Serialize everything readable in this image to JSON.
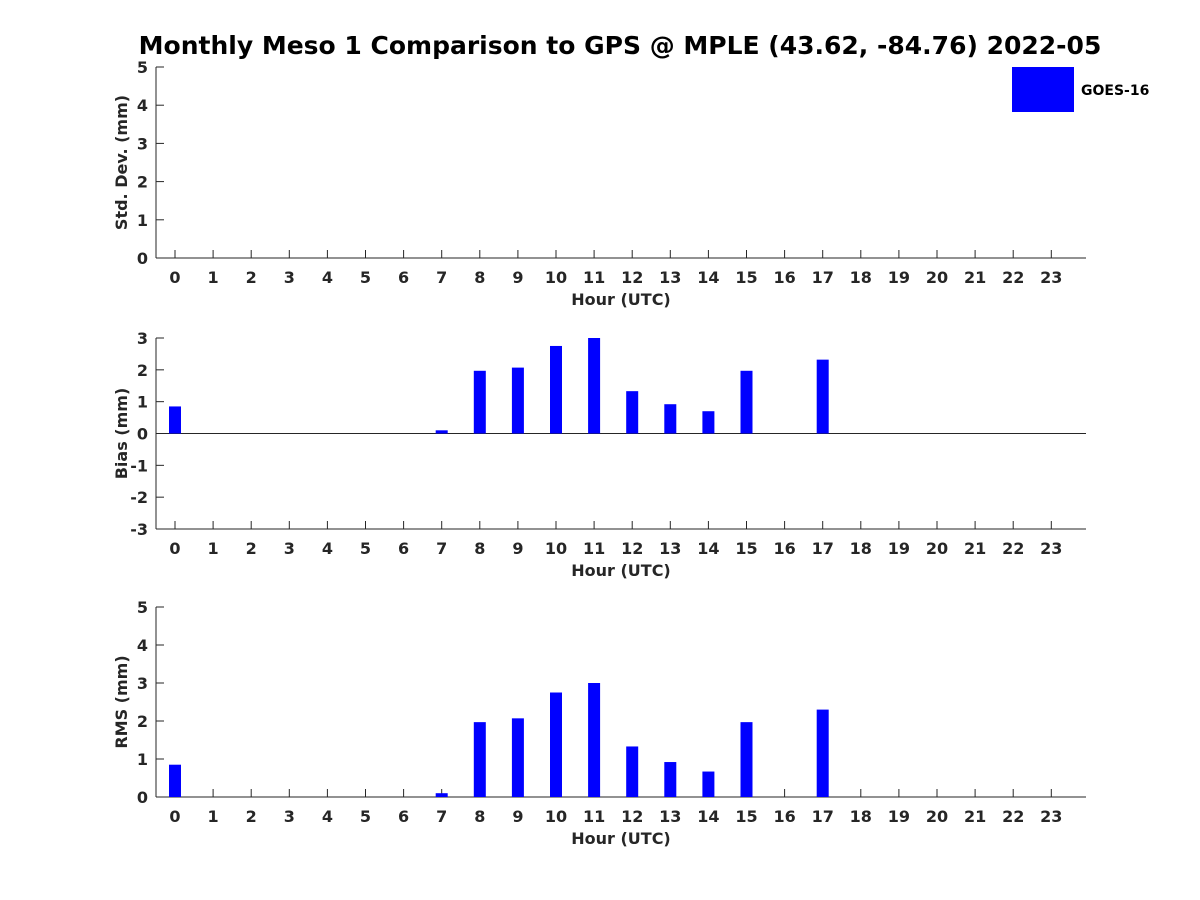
{
  "title": "Monthly Meso 1 Comparison to GPS @ MPLE (43.62, -84.76) 2022-05",
  "legend": {
    "label": "GOES-16",
    "color": "#0000ff",
    "placement": "top-right"
  },
  "chart_data": [
    {
      "type": "bar",
      "xlabel": "Hour (UTC)",
      "ylabel": "Std. Dev. (mm)",
      "ylim": [
        0,
        5
      ],
      "yticks": [
        "0",
        "1",
        "2",
        "3",
        "4",
        "5"
      ],
      "categories": [
        "0",
        "1",
        "2",
        "3",
        "4",
        "5",
        "6",
        "7",
        "8",
        "9",
        "10",
        "11",
        "12",
        "13",
        "14",
        "15",
        "16",
        "17",
        "18",
        "19",
        "20",
        "21",
        "22",
        "23"
      ],
      "series": [
        {
          "name": "GOES-16",
          "color": "#0000ff",
          "values": [
            null,
            null,
            null,
            null,
            null,
            null,
            null,
            null,
            null,
            null,
            null,
            null,
            null,
            null,
            null,
            null,
            null,
            null,
            null,
            null,
            null,
            null,
            null,
            null
          ]
        }
      ]
    },
    {
      "type": "bar",
      "xlabel": "Hour (UTC)",
      "ylabel": "Bias (mm)",
      "ylim": [
        -3,
        3
      ],
      "yticks": [
        "-3",
        "-2",
        "-1",
        "0",
        "1",
        "2",
        "3"
      ],
      "zero_line": true,
      "categories": [
        "0",
        "1",
        "2",
        "3",
        "4",
        "5",
        "6",
        "7",
        "8",
        "9",
        "10",
        "11",
        "12",
        "13",
        "14",
        "15",
        "16",
        "17",
        "18",
        "19",
        "20",
        "21",
        "22",
        "23"
      ],
      "series": [
        {
          "name": "GOES-16",
          "color": "#0000ff",
          "values": [
            0.85,
            null,
            null,
            null,
            null,
            null,
            null,
            0.1,
            1.97,
            2.07,
            2.75,
            3.0,
            1.33,
            0.92,
            0.7,
            1.97,
            null,
            2.32,
            null,
            null,
            null,
            null,
            null,
            null
          ]
        }
      ]
    },
    {
      "type": "bar",
      "xlabel": "Hour (UTC)",
      "ylabel": "RMS (mm)",
      "ylim": [
        0,
        5
      ],
      "yticks": [
        "0",
        "1",
        "2",
        "3",
        "4",
        "5"
      ],
      "categories": [
        "0",
        "1",
        "2",
        "3",
        "4",
        "5",
        "6",
        "7",
        "8",
        "9",
        "10",
        "11",
        "12",
        "13",
        "14",
        "15",
        "16",
        "17",
        "18",
        "19",
        "20",
        "21",
        "22",
        "23"
      ],
      "series": [
        {
          "name": "GOES-16",
          "color": "#0000ff",
          "values": [
            0.85,
            null,
            null,
            null,
            null,
            null,
            null,
            0.1,
            1.97,
            2.07,
            2.75,
            3.0,
            1.33,
            0.92,
            0.67,
            1.97,
            null,
            2.3,
            null,
            null,
            null,
            null,
            null,
            null
          ]
        }
      ]
    }
  ]
}
